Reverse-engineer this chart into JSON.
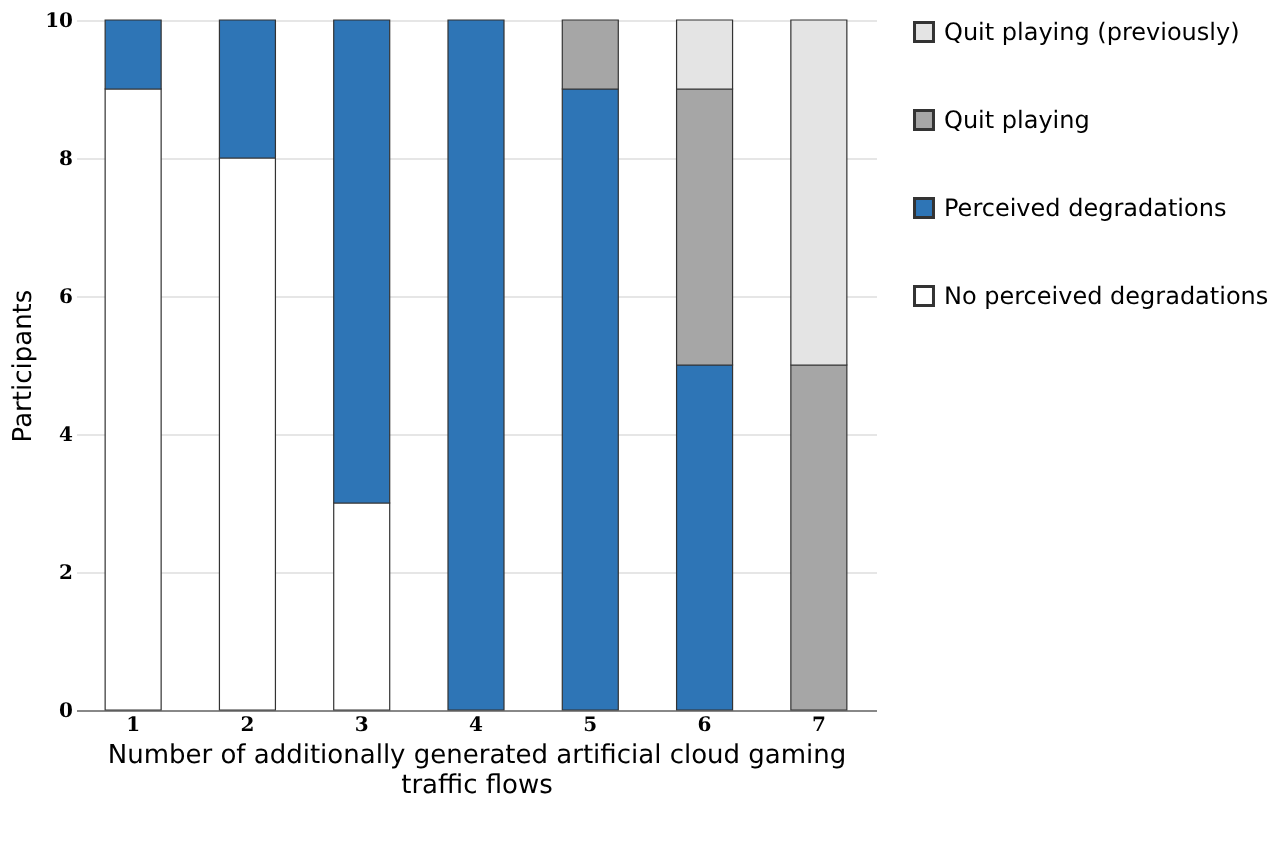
{
  "chart_data": {
    "type": "bar",
    "stacked": true,
    "xlabel": "Number of additionally generated artificial cloud gaming traffic flows",
    "ylabel": "Participants",
    "categories": [
      "1",
      "2",
      "3",
      "4",
      "5",
      "6",
      "7"
    ],
    "series": [
      {
        "name": "No perceived degradations",
        "color": "#ffffff",
        "values": [
          9,
          8,
          3,
          0,
          0,
          0,
          0
        ]
      },
      {
        "name": "Perceived degradations",
        "color": "#2e75b6",
        "values": [
          1,
          2,
          7,
          10,
          9,
          5,
          0
        ]
      },
      {
        "name": "Quit playing",
        "color": "#a6a6a6",
        "values": [
          0,
          0,
          0,
          0,
          1,
          4,
          5
        ]
      },
      {
        "name": "Quit playing (previously)",
        "color": "#e4e4e4",
        "values": [
          0,
          0,
          0,
          0,
          0,
          1,
          5
        ]
      }
    ],
    "ylim": [
      0,
      10
    ],
    "yticks": [
      0,
      2,
      4,
      6,
      8,
      10
    ],
    "grid": "y",
    "legend": "right"
  }
}
